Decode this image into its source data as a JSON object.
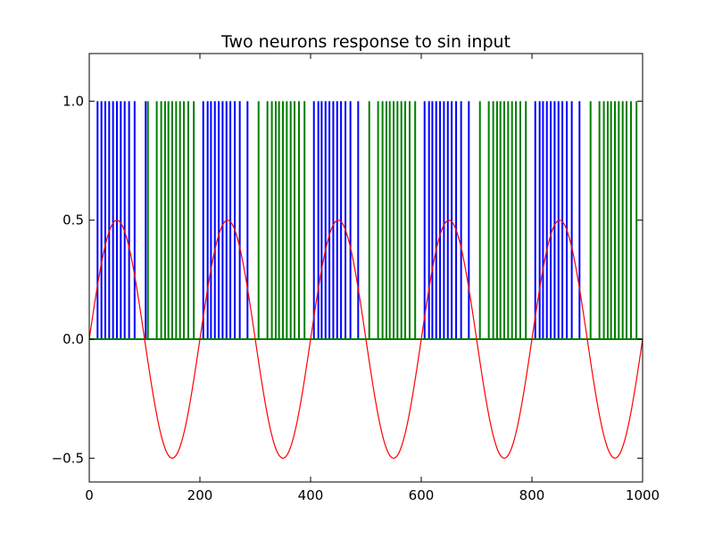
{
  "chart_data": {
    "type": "line",
    "title": "Two neurons response to sin input",
    "xlabel": "",
    "ylabel": "",
    "xlim": [
      0,
      1000
    ],
    "ylim": [
      -0.6,
      1.2
    ],
    "grid": false,
    "x_ticks": [
      0,
      200,
      400,
      600,
      800,
      1000
    ],
    "x_tick_labels": [
      "0",
      "200",
      "400",
      "600",
      "800",
      "1000"
    ],
    "y_ticks": [
      -0.5,
      0.0,
      0.5,
      1.0
    ],
    "y_tick_labels": [
      "−0.5",
      "0.0",
      "0.5",
      "1.0"
    ],
    "series": [
      {
        "kind": "spikes",
        "color": "#0000ff",
        "spike_height": 1.0,
        "spike_times": [
          15,
          22,
          29,
          36,
          43,
          50,
          57,
          64,
          72,
          82,
          102,
          206,
          214,
          220,
          227,
          234,
          241,
          248,
          255,
          263,
          272,
          286,
          406,
          414,
          420,
          427,
          434,
          441,
          448,
          455,
          463,
          472,
          486,
          606,
          614,
          620,
          627,
          634,
          641,
          648,
          655,
          663,
          672,
          686,
          806,
          814,
          820,
          827,
          834,
          841,
          848,
          855,
          863,
          872,
          886
        ]
      },
      {
        "kind": "spikes",
        "color": "#007f00",
        "spike_height": 1.0,
        "spike_times": [
          106,
          122,
          130,
          137,
          143,
          150,
          157,
          164,
          171,
          179,
          189,
          306,
          322,
          330,
          337,
          343,
          350,
          357,
          364,
          371,
          379,
          389,
          506,
          522,
          530,
          537,
          543,
          550,
          557,
          564,
          571,
          579,
          589,
          706,
          722,
          730,
          737,
          743,
          750,
          757,
          764,
          771,
          779,
          789,
          906,
          922,
          930,
          937,
          943,
          950,
          957,
          964,
          971,
          979,
          989
        ]
      },
      {
        "kind": "sine",
        "color": "#ff0000",
        "amplitude": 0.5,
        "period": 200,
        "x_start": 0,
        "x_end": 1000
      }
    ]
  }
}
